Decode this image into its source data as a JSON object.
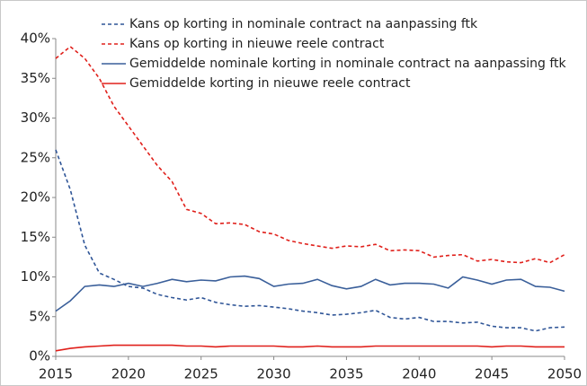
{
  "chart_data": {
    "type": "line",
    "x": [
      2015,
      2016,
      2017,
      2018,
      2019,
      2020,
      2021,
      2022,
      2023,
      2024,
      2025,
      2026,
      2027,
      2028,
      2029,
      2030,
      2031,
      2032,
      2033,
      2034,
      2035,
      2036,
      2037,
      2038,
      2039,
      2040,
      2041,
      2042,
      2043,
      2044,
      2045,
      2046,
      2047,
      2048,
      2049,
      2050
    ],
    "xlim": [
      2015,
      2050
    ],
    "xticks": [
      2015,
      2020,
      2025,
      2030,
      2035,
      2040,
      2045,
      2050
    ],
    "ylim": [
      0,
      40
    ],
    "yticks": [
      {
        "value": 0,
        "label": "0%"
      },
      {
        "value": 5,
        "label": "5%"
      },
      {
        "value": 10,
        "label": "10%"
      },
      {
        "value": 15,
        "label": "15%"
      },
      {
        "value": 20,
        "label": "20%"
      },
      {
        "value": 25,
        "label": "25%"
      },
      {
        "value": 30,
        "label": "30%"
      },
      {
        "value": 35,
        "label": "35%"
      },
      {
        "value": 40,
        "label": "40%"
      }
    ],
    "grid": false,
    "series": [
      {
        "name": "Kans op korting in nominale contract na aanpassing ftk",
        "color": "#2f5597",
        "line_style": "dashed",
        "values": [
          26,
          21,
          14,
          10.5,
          9.7,
          8.8,
          8.6,
          7.8,
          7.4,
          7.1,
          7.4,
          6.8,
          6.5,
          6.3,
          6.4,
          6.2,
          6.0,
          5.7,
          5.5,
          5.2,
          5.3,
          5.5,
          5.8,
          4.9,
          4.7,
          4.9,
          4.4,
          4.4,
          4.2,
          4.3,
          3.8,
          3.6,
          3.6,
          3.2,
          3.6,
          3.7
        ]
      },
      {
        "name": "Kans op korting in nieuwe reele contract",
        "color": "#e0201b",
        "line_style": "dashed",
        "values": [
          37.5,
          39,
          37.5,
          35,
          31.5,
          29,
          26.5,
          24,
          22,
          18.5,
          18,
          16.7,
          16.8,
          16.6,
          15.7,
          15.4,
          14.6,
          14.2,
          13.9,
          13.6,
          13.9,
          13.8,
          14.1,
          13.3,
          13.4,
          13.3,
          12.5,
          12.7,
          12.8,
          12.0,
          12.2,
          11.9,
          11.8,
          12.3,
          11.8,
          12.8
        ]
      },
      {
        "name": "Gemiddelde nominale korting in nominale contract na aanpassing ftk",
        "color": "#3a5f9a",
        "line_style": "solid",
        "values": [
          5.7,
          7,
          8.8,
          9.0,
          8.8,
          9.2,
          8.8,
          9.2,
          9.7,
          9.4,
          9.6,
          9.5,
          10.0,
          10.1,
          9.8,
          8.8,
          9.1,
          9.2,
          9.7,
          8.9,
          8.5,
          8.8,
          9.7,
          9.0,
          9.2,
          9.2,
          9.1,
          8.6,
          10.0,
          9.6,
          9.1,
          9.6,
          9.7,
          8.8,
          8.7,
          8.2
        ]
      },
      {
        "name": "Gemiddelde korting in nieuwe reele contract",
        "color": "#e0201b",
        "line_style": "solid",
        "values": [
          0.7,
          1.0,
          1.2,
          1.3,
          1.4,
          1.4,
          1.4,
          1.4,
          1.4,
          1.3,
          1.3,
          1.2,
          1.3,
          1.3,
          1.3,
          1.3,
          1.2,
          1.2,
          1.3,
          1.2,
          1.2,
          1.2,
          1.3,
          1.3,
          1.3,
          1.3,
          1.3,
          1.3,
          1.3,
          1.3,
          1.2,
          1.3,
          1.3,
          1.2,
          1.2,
          1.2
        ]
      }
    ]
  }
}
